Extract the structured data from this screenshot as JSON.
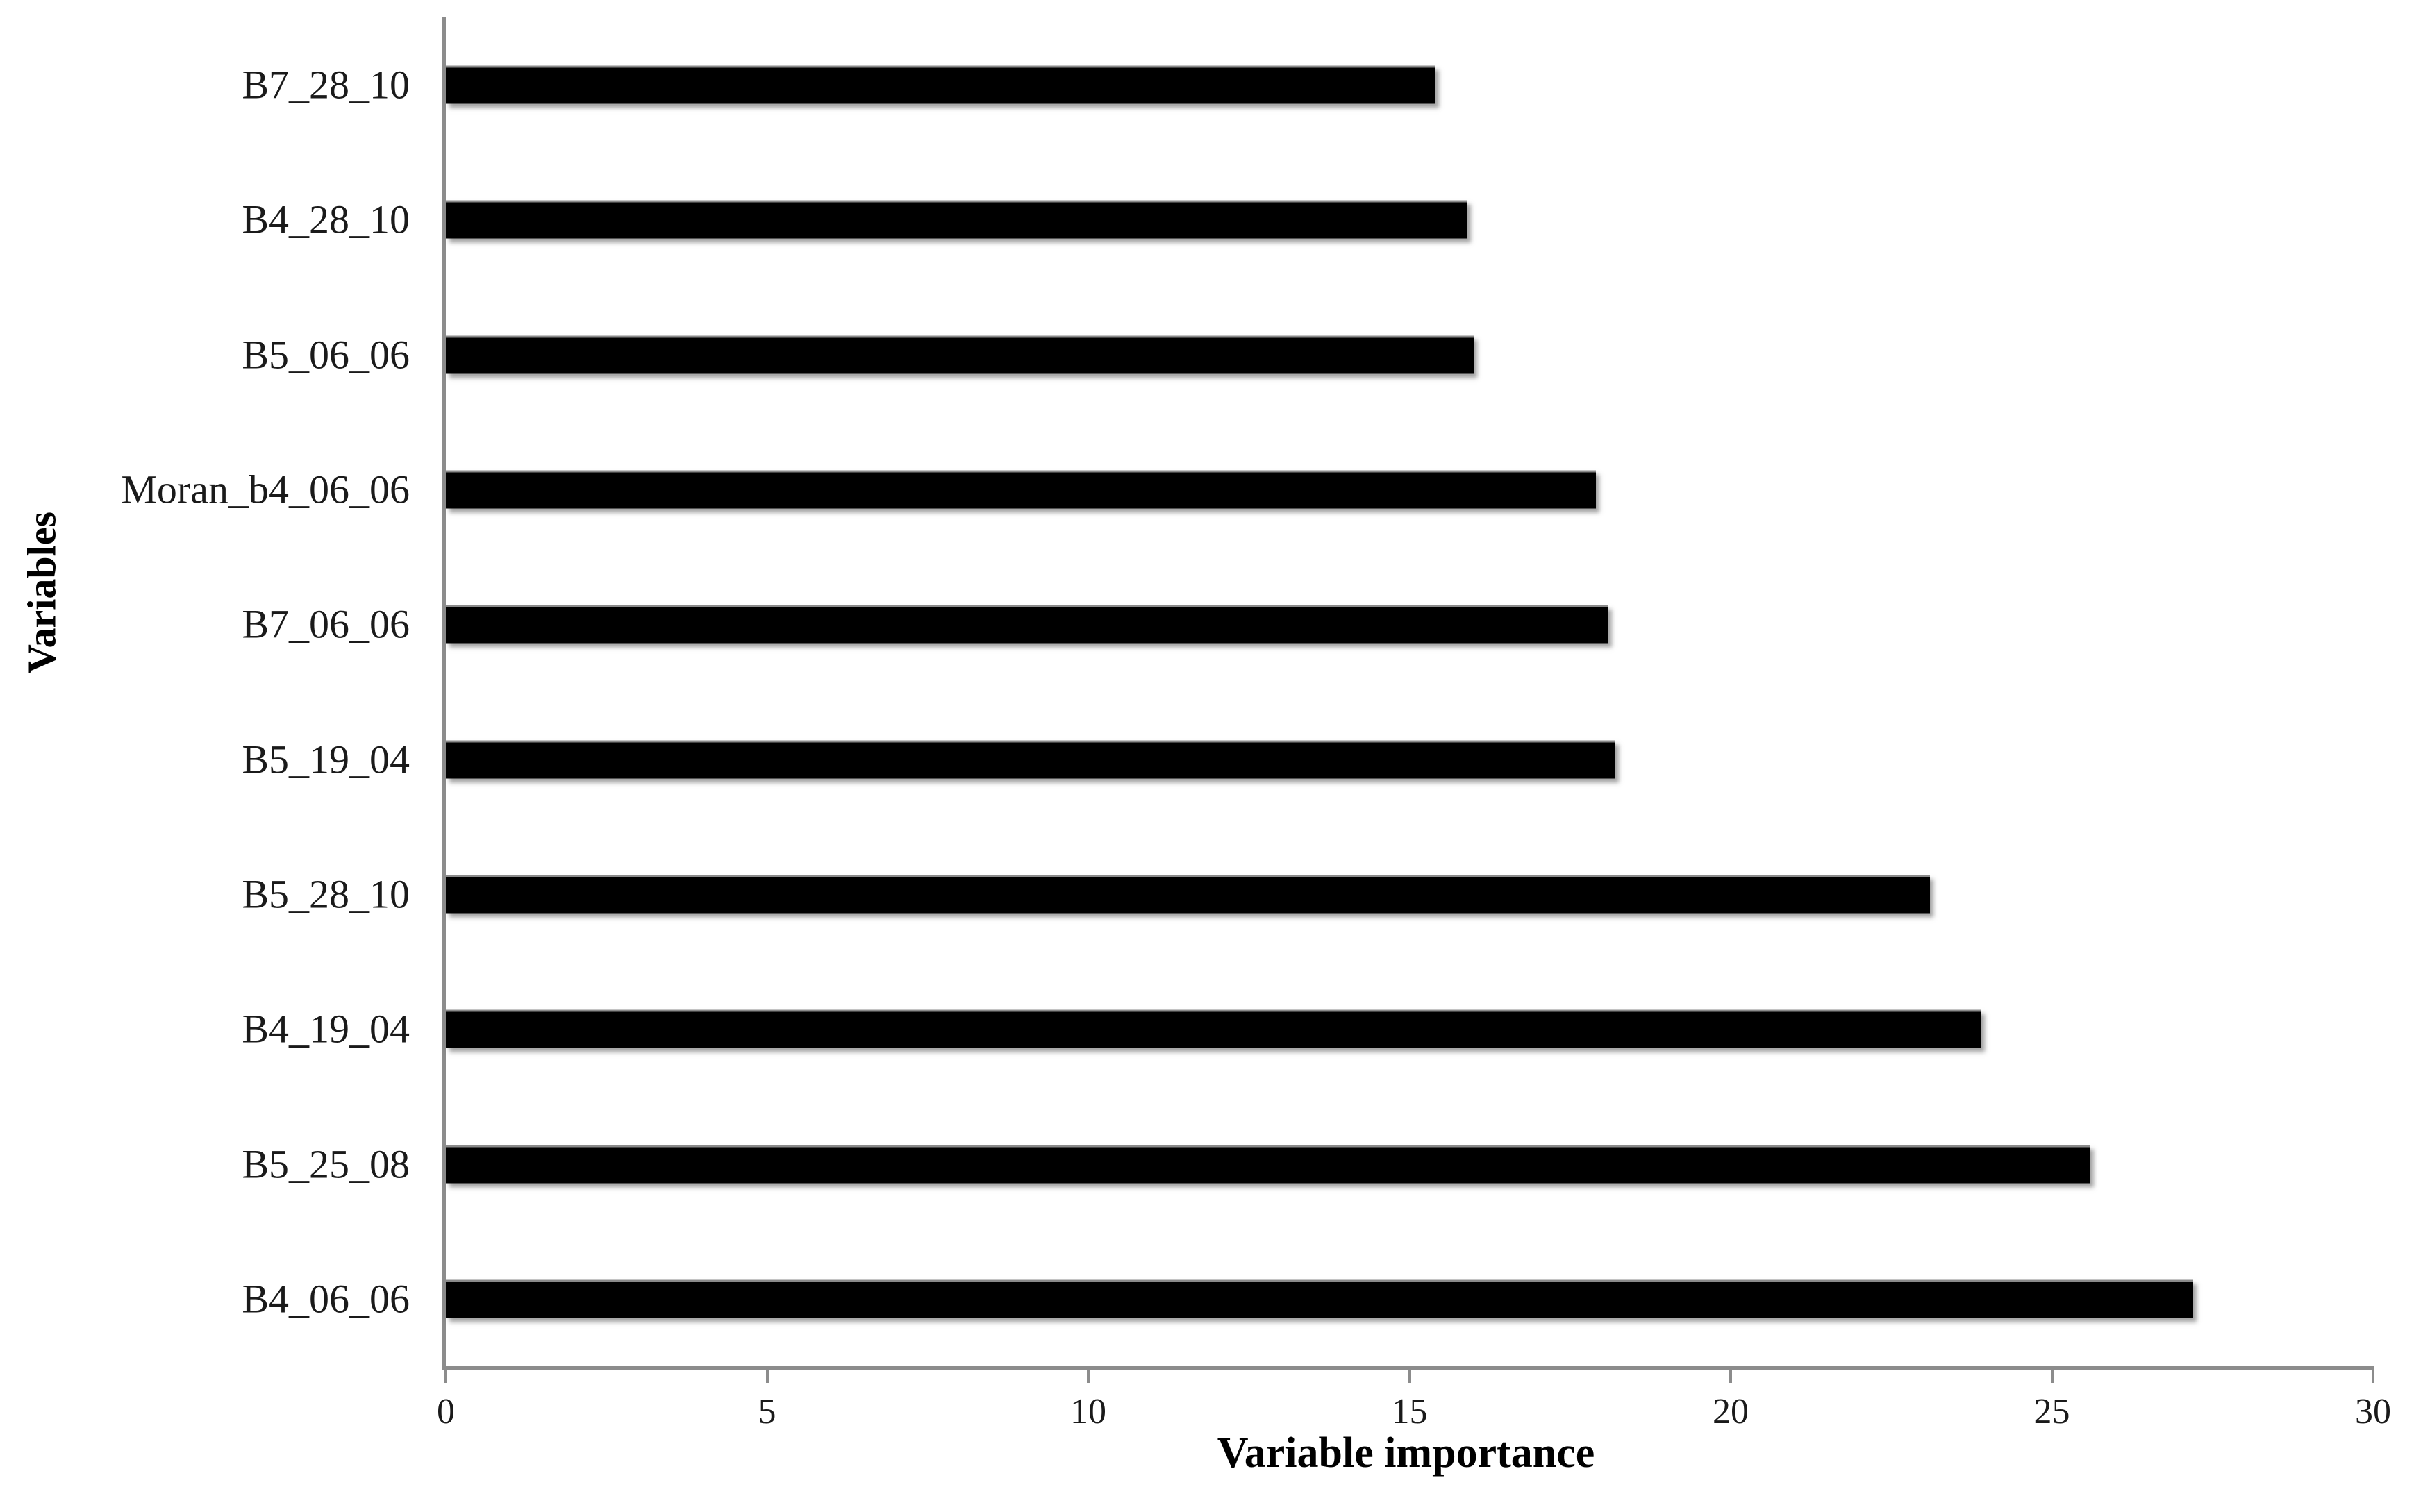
{
  "chart_data": {
    "type": "bar",
    "orientation": "horizontal",
    "title": "",
    "xlabel": "Variable importance",
    "ylabel": "Variables",
    "categories": [
      "B7_28_10",
      "B4_28_10",
      "B5_06_06",
      "Moran_b4_06_06",
      "B7_06_06",
      "B5_19_04",
      "B5_28_10",
      "B4_19_04",
      "B5_25_08",
      "B4_06_06"
    ],
    "values": [
      15.4,
      15.9,
      16.0,
      17.9,
      18.1,
      18.2,
      23.1,
      23.9,
      25.6,
      27.2
    ],
    "xlim": [
      0,
      30
    ],
    "xticks": [
      0,
      5,
      10,
      15,
      20,
      25,
      30
    ],
    "bar_color": "#000000",
    "axis_color": "#8c8c8c",
    "grid": false,
    "legend": false,
    "background_color": "#ffffff"
  }
}
